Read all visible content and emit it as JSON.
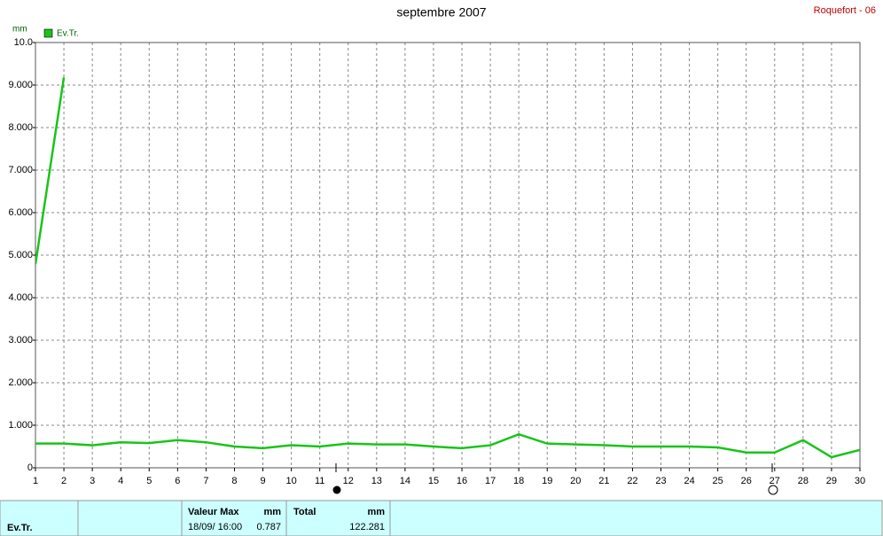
{
  "header": {
    "title": "septembre 2007",
    "station": "Roquefort - 06"
  },
  "chart_data": {
    "type": "line",
    "y_unit": "mm",
    "x": [
      1,
      2,
      3,
      4,
      5,
      6,
      7,
      8,
      9,
      10,
      11,
      12,
      13,
      14,
      15,
      16,
      17,
      18,
      19,
      20,
      21,
      22,
      23,
      24,
      25,
      26,
      27,
      28,
      29,
      30
    ],
    "xlim": [
      1,
      30
    ],
    "xticks": [
      1,
      2,
      3,
      4,
      5,
      6,
      7,
      8,
      9,
      10,
      11,
      12,
      13,
      14,
      15,
      16,
      17,
      18,
      19,
      20,
      21,
      22,
      23,
      24,
      25,
      26,
      27,
      28,
      29,
      30
    ],
    "ylim": [
      0,
      10
    ],
    "yticks": [
      0,
      {
        "value": 1,
        "label": "1.000"
      },
      {
        "value": 2,
        "label": "2.000"
      },
      {
        "value": 3,
        "label": "3.000"
      },
      {
        "value": 4,
        "label": "4.000"
      },
      {
        "value": 5,
        "label": "5.000"
      },
      {
        "value": 6,
        "label": "6.000"
      },
      {
        "value": 7,
        "label": "7.000"
      },
      {
        "value": 8,
        "label": "8.000"
      },
      {
        "value": 9,
        "label": "9.000"
      },
      {
        "value": 10,
        "label": "10.0"
      }
    ],
    "grid": true,
    "series": [
      {
        "name": "Ev.Tr.",
        "color": "#19c419",
        "values": [
          0.57,
          0.57,
          0.53,
          0.6,
          0.58,
          0.65,
          0.6,
          0.5,
          0.46,
          0.53,
          0.5,
          0.57,
          0.55,
          0.55,
          0.5,
          0.46,
          0.53,
          0.787,
          0.57,
          0.55,
          0.53,
          0.5,
          0.5,
          0.5,
          0.48,
          0.36,
          0.36,
          0.65,
          0.25,
          0.42
        ]
      },
      {
        "color": "#19c419",
        "values": [
          4.79,
          9.18,
          null,
          null,
          null,
          null,
          null,
          null,
          null,
          null,
          null,
          null,
          null,
          null,
          null,
          null,
          null,
          null,
          null,
          null,
          null,
          null,
          null,
          null,
          null,
          null,
          null,
          null,
          null,
          null
        ]
      }
    ]
  },
  "table": {
    "series_label": "Ev.Tr.",
    "max_header": "Valeur Max",
    "max_unit": "mm",
    "max_date": "18/09/ 16:00",
    "max_value": 0.787,
    "total_header": "Total",
    "total_unit": "mm",
    "total_value": 122.281
  }
}
